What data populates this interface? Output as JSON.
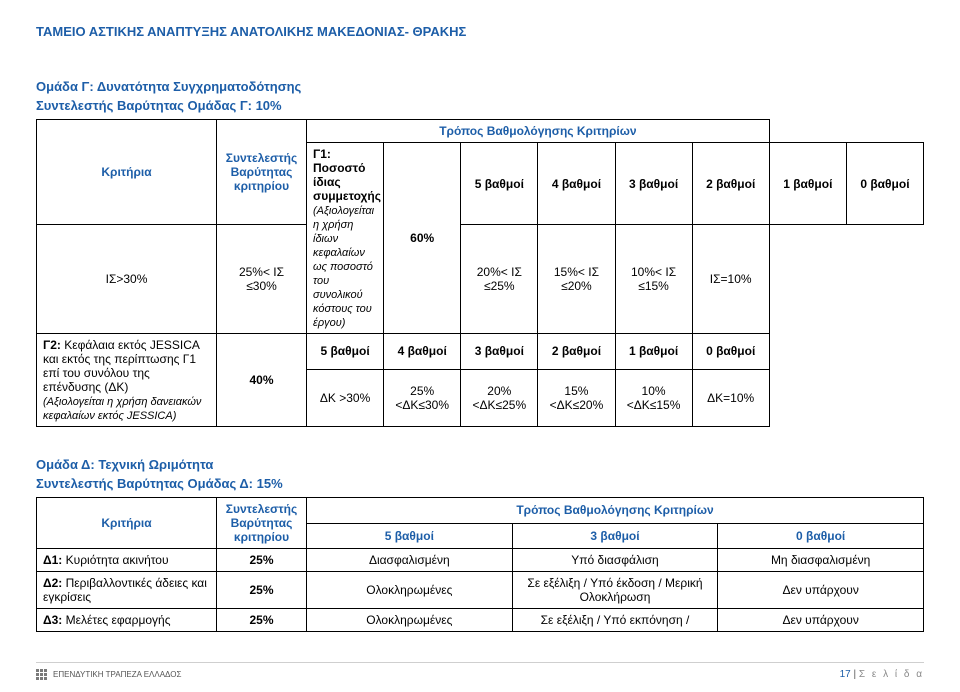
{
  "document_header": "ΤΑΜΕΙΟ ΑΣΤΙΚΗΣ ΑΝΑΠΤΥΞΗΣ ΑΝΑΤΟΛΙΚΗΣ ΜΑΚΕΔΟΝΙΑΣ- ΘΡΑΚΗΣ",
  "common": {
    "criteria_label": "Κριτήρια",
    "weight_label": "Συντελεστής Βαρύτητας κριτηρίου",
    "scoring_label": "Τρόπος Βαθμολόγησης Κριτηρίων"
  },
  "group_c": {
    "title": "Ομάδα Γ: Δυνατότητα Συγχρηματοδότησης",
    "subtitle": "Συντελεστής Βαρύτητας Ομάδας Γ: 10%",
    "score_headers": [
      "5 βαθμοί",
      "4 βαθμοί",
      "3 βαθμοί",
      "2 βαθμοί",
      "1 βαθμοί",
      "0 βαθμοί"
    ],
    "rows": [
      {
        "label": "Γ1:",
        "name": "Ποσοστό ίδιας συμμετοχής",
        "note": "(Αξιολογείται η χρήση ίδιων κεφαλαίων ως ποσοστό του συνολικού κόστους του έργου)",
        "weight": "60%",
        "scores": [
          "ΙΣ>30%",
          "25%< ΙΣ ≤30%",
          "20%< ΙΣ ≤25%",
          "15%< ΙΣ ≤20%",
          "10%< ΙΣ ≤15%",
          "ΙΣ=10%"
        ]
      },
      {
        "label": "Γ2:",
        "name": "Κεφάλαια εκτός JESSICA και εκτός της περίπτωσης Γ1 επί του συνόλου της επένδυσης (ΔΚ)",
        "note": "(Αξιολογείται η χρήση δανειακών κεφαλαίων εκτός JESSICA)",
        "weight": "40%",
        "scores": [
          "ΔΚ >30%",
          "25%<ΔΚ≤30%",
          "20%<ΔΚ≤25%",
          "15%<ΔΚ≤20%",
          "10%<ΔΚ≤15%",
          "ΔΚ=10%"
        ]
      }
    ]
  },
  "group_d": {
    "title": "Ομάδα Δ: Τεχνική Ωριμότητα",
    "subtitle": "Συντελεστής Βαρύτητας Ομάδας Δ: 15%",
    "score_headers": [
      "5 βαθμοί",
      "3 βαθμοί",
      "0 βαθμοί"
    ],
    "rows": [
      {
        "label": "Δ1:",
        "name": "Κυριότητα ακινήτου",
        "weight": "25%",
        "scores": [
          "Διασφαλισμένη",
          "Υπό διασφάλιση",
          "Μη διασφαλισμένη"
        ]
      },
      {
        "label": "Δ2:",
        "name": "Περιβαλλοντικές άδειες και εγκρίσεις",
        "weight": "25%",
        "scores": [
          "Ολοκληρωμένες",
          "Σε εξέλιξη / Υπό έκδοση / Μερική Ολοκλήρωση",
          "Δεν υπάρχουν"
        ]
      },
      {
        "label": "Δ3:",
        "name": "Μελέτες εφαρμογής",
        "weight": "25%",
        "scores": [
          "Ολοκληρωμένες",
          "Σε εξέλιξη / Υπό εκπόνηση /",
          "Δεν υπάρχουν"
        ]
      }
    ]
  },
  "footer": {
    "logo_text": "ΕΠΕΝΔΥΤΙΚΗ ΤΡΑΠΕΖΑ ΕΛΛΑΔΟΣ",
    "page_number": "17",
    "page_label": "Σ ε λ ί δ α"
  }
}
